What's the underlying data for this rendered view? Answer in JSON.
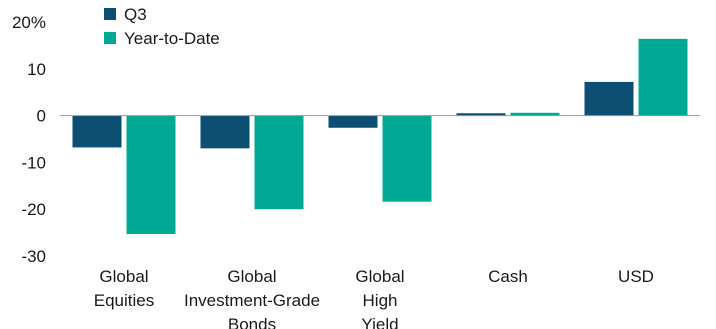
{
  "chart_data": {
    "type": "bar",
    "title": "",
    "xlabel": "",
    "ylabel": "",
    "ylim": [
      -30,
      20
    ],
    "yticks": [
      "20%",
      "10",
      "0",
      "-10",
      "-20",
      "-30"
    ],
    "ytick_values": [
      20,
      10,
      0,
      -10,
      -20,
      -30
    ],
    "grid": false,
    "legend_position": "top-left",
    "categories": [
      [
        "Global",
        "Equities"
      ],
      [
        "Global",
        "Investment-Grade",
        "Bonds"
      ],
      [
        "Global",
        "High",
        "Yield"
      ],
      [
        "Cash"
      ],
      [
        "USD"
      ]
    ],
    "series": [
      {
        "name": "Q3",
        "color": "#0d4f72",
        "values": [
          -6.8,
          -7.0,
          -2.6,
          0.5,
          7.2
        ]
      },
      {
        "name": "Year-to-Date",
        "color": "#00a993",
        "values": [
          -25.3,
          -20.0,
          -18.4,
          0.6,
          16.4
        ]
      }
    ]
  }
}
